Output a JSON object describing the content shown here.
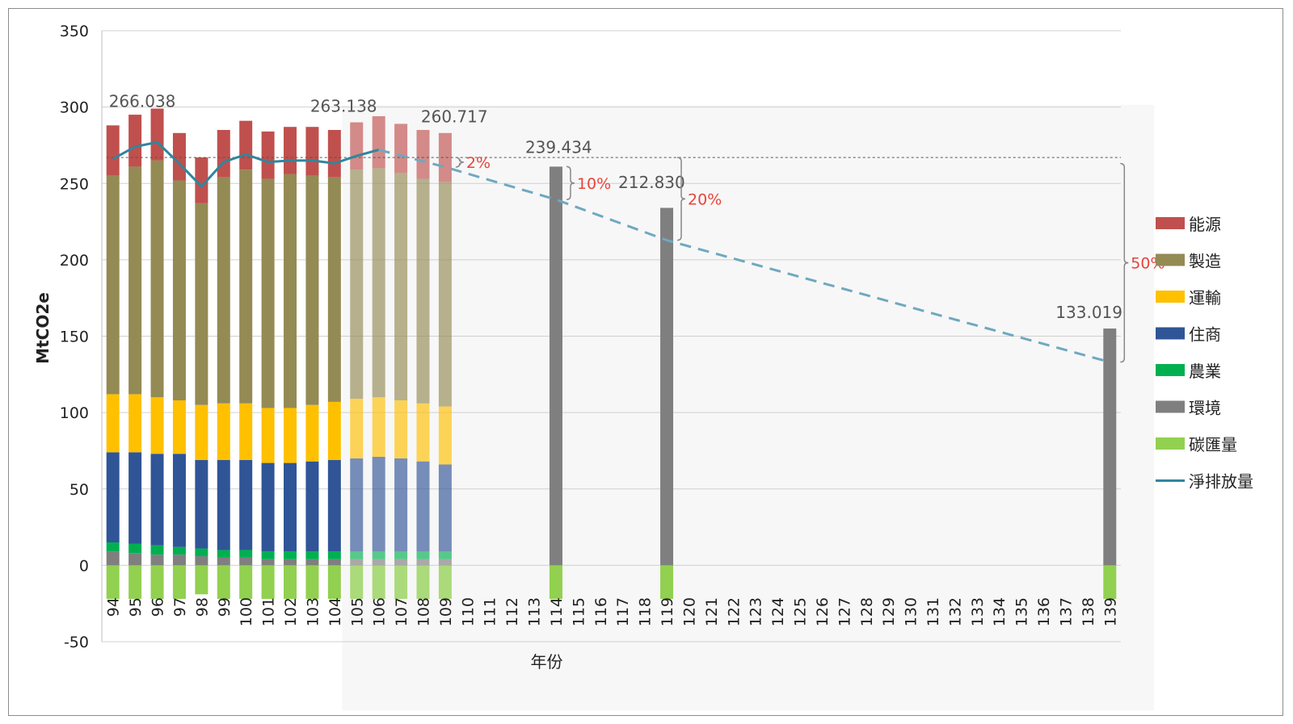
{
  "chart_data": {
    "type": "bar",
    "stacked": true,
    "title": "",
    "xlabel": "年份",
    "ylabel": "MtCO2e",
    "ylim": [
      -50,
      350
    ],
    "yticks": [
      -50,
      0,
      50,
      100,
      150,
      200,
      250,
      300,
      350
    ],
    "grid": true,
    "legend_position": "right",
    "categories": [
      "94",
      "95",
      "96",
      "97",
      "98",
      "99",
      "100",
      "101",
      "102",
      "103",
      "104",
      "105",
      "106",
      "107",
      "108",
      "109",
      "110",
      "111",
      "112",
      "113",
      "114",
      "115",
      "116",
      "117",
      "118",
      "119",
      "120",
      "121",
      "122",
      "123",
      "124",
      "125",
      "126",
      "127",
      "128",
      "129",
      "130",
      "131",
      "132",
      "133",
      "134",
      "135",
      "136",
      "137",
      "138",
      "139"
    ],
    "historical_categories": [
      "94",
      "95",
      "96",
      "97",
      "98",
      "99",
      "100",
      "101",
      "102",
      "103",
      "104"
    ],
    "projection_categories": [
      "105",
      "106",
      "107",
      "108",
      "109"
    ],
    "series": [
      {
        "name": "能源",
        "color": "#c0504d",
        "values": {
          "94": 33,
          "95": 34,
          "96": 34,
          "97": 31,
          "98": 30,
          "99": 31,
          "100": 32,
          "101": 31,
          "102": 31,
          "103": 32,
          "104": 31,
          "105": 31,
          "106": 34,
          "107": 32,
          "108": 32,
          "109": 32
        }
      },
      {
        "name": "製造",
        "color": "#948a54",
        "values": {
          "94": 143,
          "95": 149,
          "96": 155,
          "97": 144,
          "98": 132,
          "99": 148,
          "100": 153,
          "101": 150,
          "102": 153,
          "103": 150,
          "104": 147,
          "105": 150,
          "106": 150,
          "107": 149,
          "108": 147,
          "109": 147
        }
      },
      {
        "name": "運輸",
        "color": "#ffc000",
        "values": {
          "94": 38,
          "95": 38,
          "96": 37,
          "97": 35,
          "98": 36,
          "99": 37,
          "100": 37,
          "101": 36,
          "102": 36,
          "103": 37,
          "104": 38,
          "105": 39,
          "106": 39,
          "107": 38,
          "108": 38,
          "109": 38
        }
      },
      {
        "name": "住商",
        "color": "#2f5597",
        "values": {
          "94": 59,
          "95": 60,
          "96": 60,
          "97": 61,
          "98": 58,
          "99": 59,
          "100": 59,
          "101": 58,
          "102": 58,
          "103": 59,
          "104": 60,
          "105": 61,
          "106": 62,
          "107": 61,
          "108": 59,
          "109": 57
        }
      },
      {
        "name": "農業",
        "color": "#00b050",
        "values": {
          "94": 6,
          "95": 6,
          "96": 6,
          "97": 5,
          "98": 5,
          "99": 5,
          "100": 5,
          "101": 5,
          "102": 5,
          "103": 5,
          "104": 5,
          "105": 5,
          "106": 5,
          "107": 5,
          "108": 5,
          "109": 5
        }
      },
      {
        "name": "環境",
        "color": "#7f7f7f",
        "values": {
          "94": 9,
          "95": 8,
          "96": 7,
          "97": 7,
          "98": 6,
          "99": 5,
          "100": 5,
          "101": 4,
          "102": 4,
          "103": 4,
          "104": 4,
          "105": 4,
          "106": 4,
          "107": 4,
          "108": 4,
          "109": 4,
          "114": 261,
          "119": 234,
          "139": 155
        }
      },
      {
        "name": "碳匯量",
        "color": "#92d050",
        "values": {
          "94": -22,
          "95": -22,
          "96": -22,
          "97": -22,
          "98": -19,
          "99": -22,
          "100": -22,
          "101": -22,
          "102": -22,
          "103": -22,
          "104": -22,
          "105": -22,
          "106": -22,
          "107": -22,
          "108": -22,
          "109": -22,
          "114": -22,
          "119": -22,
          "139": -22
        }
      }
    ],
    "net_emissions": {
      "name": "淨排放量",
      "color": "#31859c",
      "values": {
        "94": 266.038,
        "95": 274,
        "96": 277,
        "97": 263,
        "98": 248,
        "99": 264,
        "100": 269,
        "101": 264,
        "102": 265,
        "103": 265,
        "104": 263.138,
        "105": 268,
        "106": 272
      }
    },
    "target_line": {
      "color": "#6fa8c0",
      "points": [
        [
          "106",
          272
        ],
        [
          "109",
          260.717
        ],
        [
          "114",
          239.434
        ],
        [
          "119",
          212.83
        ],
        [
          "139",
          133.019
        ]
      ]
    },
    "baseline_value": 267,
    "value_labels": [
      {
        "x": "94",
        "text": "266.038"
      },
      {
        "x": "104",
        "text": "263.138"
      },
      {
        "x": "109",
        "text": "260.717"
      },
      {
        "x": "114",
        "text": "239.434"
      },
      {
        "x": "119",
        "text": "212.830"
      },
      {
        "x": "139",
        "text": "133.019"
      }
    ],
    "reduction_labels": [
      {
        "x": "109",
        "text": "2%",
        "from": 267,
        "to": 260.7
      },
      {
        "x": "114",
        "text": "10%",
        "from": 261,
        "to": 239.4
      },
      {
        "x": "119",
        "text": "20%",
        "from": 267,
        "to": 212.8
      },
      {
        "x": "139",
        "text": "50%",
        "from": 263,
        "to": 133.0
      }
    ]
  }
}
